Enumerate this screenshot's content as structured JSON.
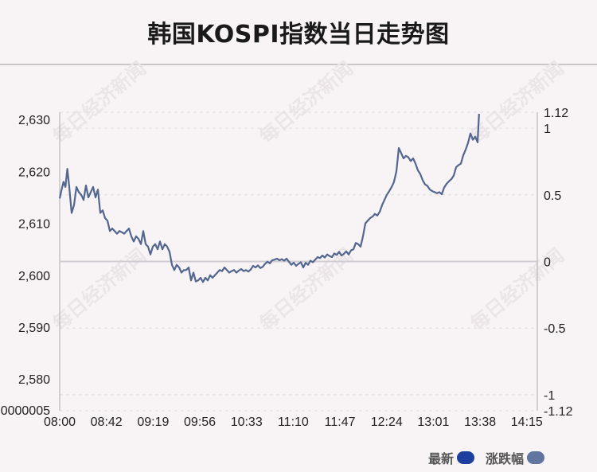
{
  "title": "韩国KOSPI指数当日走势图",
  "watermark": "每日经济新闻",
  "legend": {
    "latest_label": "最新",
    "change_label": "涨跌幅",
    "latest_color": "#1d3f9e",
    "change_color": "#61759f"
  },
  "colors": {
    "line": "#52668f",
    "zero_line": "#cfcbd0",
    "axis": "#aaaaaa",
    "grid": "#dddddd"
  },
  "chart_data": {
    "type": "line",
    "title": "韩国KOSPI指数当日走势图",
    "x_ticks": [
      "08:00",
      "08:42",
      "09:19",
      "09:56",
      "10:33",
      "11:10",
      "11:47",
      "12:24",
      "13:01",
      "13:38",
      "14:15"
    ],
    "y_left_ticks": [
      "2,580",
      "2,590",
      "2,600",
      "2,610",
      "2,620",
      "2,630"
    ],
    "y_left_values": [
      2580,
      2590,
      2600,
      2610,
      2620,
      2630
    ],
    "y_left_bottom_label": "0000005",
    "y_left_range": [
      2573.9,
      2631.4
    ],
    "y_right_ticks": [
      "-1.12",
      "-1",
      "-0.5",
      "0",
      "0.5",
      "1",
      "1.12"
    ],
    "y_right_values": [
      -1.12,
      -1,
      -0.5,
      0,
      0.5,
      1,
      1.12
    ],
    "y_right_range": [
      -1.12,
      1.12
    ],
    "prev_close": 2601.8,
    "grid": true,
    "legend_position": "bottom-right",
    "series": [
      {
        "name": "最新",
        "points": [
          [
            0,
            2614.8
          ],
          [
            0.004,
            2616.5
          ],
          [
            0.008,
            2618
          ],
          [
            0.012,
            2617
          ],
          [
            0.016,
            2620.5
          ],
          [
            0.02,
            2617
          ],
          [
            0.025,
            2612
          ],
          [
            0.03,
            2613.5
          ],
          [
            0.035,
            2617
          ],
          [
            0.04,
            2616
          ],
          [
            0.045,
            2615.5
          ],
          [
            0.05,
            2614.5
          ],
          [
            0.055,
            2617.3
          ],
          [
            0.06,
            2615
          ],
          [
            0.065,
            2616
          ],
          [
            0.07,
            2617
          ],
          [
            0.075,
            2615
          ],
          [
            0.08,
            2616.5
          ],
          [
            0.085,
            2612
          ],
          [
            0.09,
            2612.5
          ],
          [
            0.095,
            2611
          ],
          [
            0.1,
            2610.5
          ],
          [
            0.105,
            2608.5
          ],
          [
            0.11,
            2609
          ],
          [
            0.115,
            2608.5
          ],
          [
            0.12,
            2608
          ],
          [
            0.125,
            2608.5
          ],
          [
            0.13,
            2608.3
          ],
          [
            0.135,
            2608
          ],
          [
            0.14,
            2608.5
          ],
          [
            0.145,
            2609
          ],
          [
            0.15,
            2607.5
          ],
          [
            0.155,
            2606.5
          ],
          [
            0.16,
            2607.5
          ],
          [
            0.165,
            2607
          ],
          [
            0.17,
            2606
          ],
          [
            0.175,
            2608.5
          ],
          [
            0.18,
            2606
          ],
          [
            0.185,
            2605.5
          ],
          [
            0.19,
            2604
          ],
          [
            0.195,
            2605.5
          ],
          [
            0.2,
            2606
          ],
          [
            0.205,
            2605
          ],
          [
            0.21,
            2606.5
          ],
          [
            0.215,
            2605
          ],
          [
            0.22,
            2606
          ],
          [
            0.225,
            2605.5
          ],
          [
            0.23,
            2604.5
          ],
          [
            0.235,
            2602
          ],
          [
            0.24,
            2601
          ],
          [
            0.245,
            2602
          ],
          [
            0.25,
            2601.5
          ],
          [
            0.255,
            2600.5
          ],
          [
            0.26,
            2601
          ],
          [
            0.265,
            2601
          ],
          [
            0.27,
            2601.5
          ],
          [
            0.275,
            2599
          ],
          [
            0.28,
            2600.5
          ],
          [
            0.285,
            2598.8
          ],
          [
            0.29,
            2599
          ],
          [
            0.295,
            2599.5
          ],
          [
            0.3,
            2598.7
          ],
          [
            0.305,
            2599.5
          ],
          [
            0.31,
            2599
          ],
          [
            0.315,
            2600
          ],
          [
            0.32,
            2599.5
          ],
          [
            0.325,
            2600
          ],
          [
            0.33,
            2600.5
          ],
          [
            0.335,
            2601
          ],
          [
            0.34,
            2600.8
          ],
          [
            0.345,
            2601.5
          ],
          [
            0.35,
            2601
          ],
          [
            0.355,
            2600.5
          ],
          [
            0.36,
            2600.8
          ],
          [
            0.365,
            2601
          ],
          [
            0.37,
            2600.5
          ],
          [
            0.375,
            2600.9
          ],
          [
            0.38,
            2601.2
          ],
          [
            0.385,
            2600.8
          ],
          [
            0.39,
            2601
          ],
          [
            0.395,
            2600.7
          ],
          [
            0.4,
            2601.1
          ],
          [
            0.405,
            2601.8
          ],
          [
            0.41,
            2601.5
          ],
          [
            0.415,
            2601.9
          ],
          [
            0.42,
            2601.4
          ],
          [
            0.425,
            2601.6
          ],
          [
            0.43,
            2602.2
          ],
          [
            0.435,
            2602.6
          ],
          [
            0.44,
            2602.3
          ],
          [
            0.445,
            2602.9
          ],
          [
            0.45,
            2603
          ],
          [
            0.455,
            2603.2
          ],
          [
            0.46,
            2602.9
          ],
          [
            0.465,
            2603.1
          ],
          [
            0.47,
            2602.8
          ],
          [
            0.475,
            2603.2
          ],
          [
            0.48,
            2602.6
          ],
          [
            0.485,
            2602
          ],
          [
            0.49,
            2602.4
          ],
          [
            0.495,
            2601.8
          ],
          [
            0.5,
            2602.2
          ],
          [
            0.505,
            2602.5
          ],
          [
            0.51,
            2601.5
          ],
          [
            0.515,
            2602.4
          ],
          [
            0.52,
            2602
          ],
          [
            0.525,
            2602.8
          ],
          [
            0.53,
            2602.5
          ],
          [
            0.535,
            2603
          ],
          [
            0.54,
            2603.5
          ],
          [
            0.545,
            2603.3
          ],
          [
            0.55,
            2603.8
          ],
          [
            0.555,
            2603.4
          ],
          [
            0.56,
            2604
          ],
          [
            0.565,
            2603.7
          ],
          [
            0.57,
            2603.5
          ],
          [
            0.575,
            2604.2
          ],
          [
            0.58,
            2603.9
          ],
          [
            0.585,
            2604.5
          ],
          [
            0.59,
            2603.8
          ],
          [
            0.595,
            2604.1
          ],
          [
            0.6,
            2604.6
          ],
          [
            0.605,
            2604
          ],
          [
            0.61,
            2604.8
          ],
          [
            0.615,
            2605
          ],
          [
            0.62,
            2606.2
          ],
          [
            0.625,
            2606
          ],
          [
            0.63,
            2605.5
          ],
          [
            0.635,
            2607.5
          ],
          [
            0.64,
            2610
          ],
          [
            0.645,
            2610.5
          ],
          [
            0.65,
            2611
          ],
          [
            0.655,
            2611.3
          ],
          [
            0.66,
            2611.8
          ],
          [
            0.665,
            2611.5
          ],
          [
            0.67,
            2612.2
          ],
          [
            0.675,
            2613.5
          ],
          [
            0.68,
            2614.5
          ],
          [
            0.685,
            2615.5
          ],
          [
            0.69,
            2616.2
          ],
          [
            0.695,
            2617
          ],
          [
            0.7,
            2618
          ],
          [
            0.705,
            2620
          ],
          [
            0.71,
            2624.5
          ],
          [
            0.715,
            2623.5
          ],
          [
            0.72,
            2622.5
          ],
          [
            0.725,
            2623
          ],
          [
            0.73,
            2622.7
          ],
          [
            0.735,
            2622
          ],
          [
            0.74,
            2622.5
          ],
          [
            0.745,
            2621.5
          ],
          [
            0.75,
            2620.2
          ],
          [
            0.755,
            2619.5
          ],
          [
            0.76,
            2618.3
          ],
          [
            0.765,
            2617.5
          ],
          [
            0.77,
            2617.2
          ],
          [
            0.775,
            2616.5
          ],
          [
            0.78,
            2616.2
          ],
          [
            0.785,
            2616
          ],
          [
            0.79,
            2615.8
          ],
          [
            0.795,
            2616
          ],
          [
            0.8,
            2615.6
          ],
          [
            0.805,
            2616.9
          ],
          [
            0.81,
            2617.6
          ],
          [
            0.815,
            2618.1
          ],
          [
            0.82,
            2618.5
          ],
          [
            0.825,
            2619.2
          ],
          [
            0.83,
            2620.8
          ],
          [
            0.835,
            2621.2
          ],
          [
            0.84,
            2621.5
          ],
          [
            0.845,
            2623.1
          ],
          [
            0.85,
            2624.2
          ],
          [
            0.855,
            2625.5
          ],
          [
            0.86,
            2627.3
          ],
          [
            0.865,
            2626.1
          ],
          [
            0.87,
            2626.7
          ],
          [
            0.875,
            2625.6
          ],
          [
            0.878,
            2631.1
          ]
        ]
      }
    ]
  }
}
